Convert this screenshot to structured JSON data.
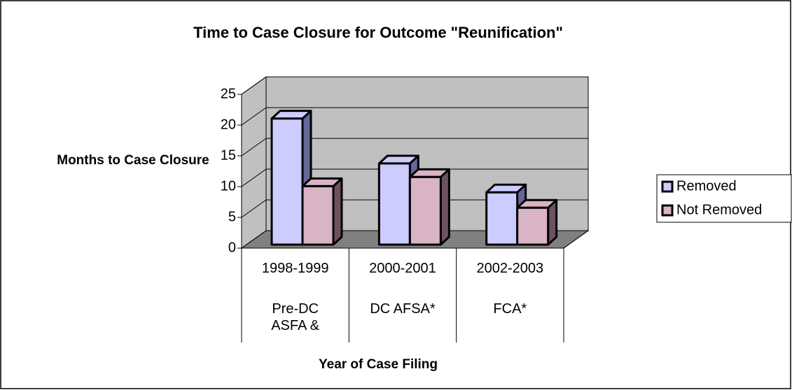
{
  "chart_data": {
    "type": "bar3d",
    "title": "Time to Case Closure for Outcome \"Reunification\"",
    "y_axis_label": "Months to Case Closure",
    "x_axis_label": "Year of Case Filing",
    "categories": [
      "1998-1999",
      "2000-2001",
      "2002-2003"
    ],
    "category_notes": [
      "Pre-DC ASFA &",
      "DC AFSA*",
      "FCA*"
    ],
    "series": [
      {
        "name": "Removed",
        "color": "#ccccff",
        "side_color": "#666699",
        "values": [
          20.5,
          13.2,
          8.5
        ]
      },
      {
        "name": "Not Removed",
        "color": "#d9b3c6",
        "side_color": "#6b5260",
        "values": [
          9.5,
          11,
          6
        ]
      }
    ],
    "ylim": [
      0,
      25
    ],
    "yticks": [
      0,
      5,
      10,
      15,
      20,
      25
    ],
    "grid": true,
    "legend": "right"
  }
}
